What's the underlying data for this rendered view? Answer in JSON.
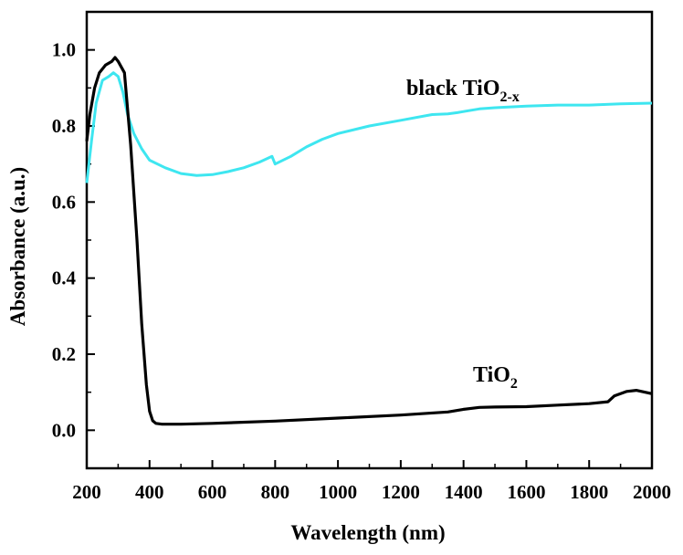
{
  "chart_data": {
    "type": "line",
    "xlabel": "Wavelength (nm)",
    "ylabel": "Absorbance (a.u.)",
    "xlim": [
      200,
      2000
    ],
    "ylim": [
      -0.1,
      1.1
    ],
    "xticks": [
      200,
      400,
      600,
      800,
      1000,
      1200,
      1400,
      1600,
      1800,
      2000
    ],
    "yticks": [
      0.0,
      0.2,
      0.4,
      0.6,
      0.8,
      1.0
    ],
    "xtick_labels": [
      "200",
      "400",
      "600",
      "800",
      "1000",
      "1200",
      "1400",
      "1600",
      "1800",
      "2000"
    ],
    "ytick_labels": [
      "0.0",
      "0.2",
      "0.4",
      "0.6",
      "0.8",
      "1.0"
    ],
    "grid": false,
    "series": [
      {
        "name": "black TiO2-x",
        "label_main": "black TiO",
        "label_sub": "2-x",
        "color": "#3ee6f0",
        "x": [
          200,
          215,
          230,
          250,
          270,
          285,
          300,
          315,
          330,
          350,
          375,
          400,
          450,
          500,
          550,
          600,
          650,
          700,
          750,
          790,
          800,
          850,
          900,
          950,
          1000,
          1100,
          1200,
          1300,
          1350,
          1380,
          1400,
          1450,
          1500,
          1600,
          1700,
          1800,
          1900,
          2000
        ],
        "y": [
          0.65,
          0.76,
          0.86,
          0.92,
          0.93,
          0.94,
          0.93,
          0.89,
          0.83,
          0.78,
          0.74,
          0.71,
          0.69,
          0.675,
          0.67,
          0.672,
          0.68,
          0.69,
          0.705,
          0.72,
          0.7,
          0.72,
          0.745,
          0.765,
          0.78,
          0.8,
          0.815,
          0.83,
          0.832,
          0.835,
          0.838,
          0.845,
          0.848,
          0.852,
          0.855,
          0.855,
          0.858,
          0.86
        ]
      },
      {
        "name": "TiO2",
        "label_main": "TiO",
        "label_sub": "2",
        "color": "#000000",
        "x": [
          200,
          210,
          225,
          240,
          260,
          280,
          290,
          300,
          320,
          340,
          360,
          375,
          390,
          400,
          410,
          420,
          440,
          500,
          600,
          800,
          1000,
          1200,
          1350,
          1400,
          1450,
          1500,
          1600,
          1700,
          1800,
          1860,
          1880,
          1920,
          1950,
          2000
        ],
        "y": [
          0.76,
          0.83,
          0.9,
          0.94,
          0.96,
          0.97,
          0.98,
          0.97,
          0.94,
          0.75,
          0.5,
          0.28,
          0.12,
          0.05,
          0.025,
          0.018,
          0.016,
          0.016,
          0.018,
          0.024,
          0.032,
          0.04,
          0.048,
          0.055,
          0.06,
          0.061,
          0.062,
          0.066,
          0.07,
          0.075,
          0.09,
          0.102,
          0.105,
          0.096
        ]
      }
    ]
  }
}
